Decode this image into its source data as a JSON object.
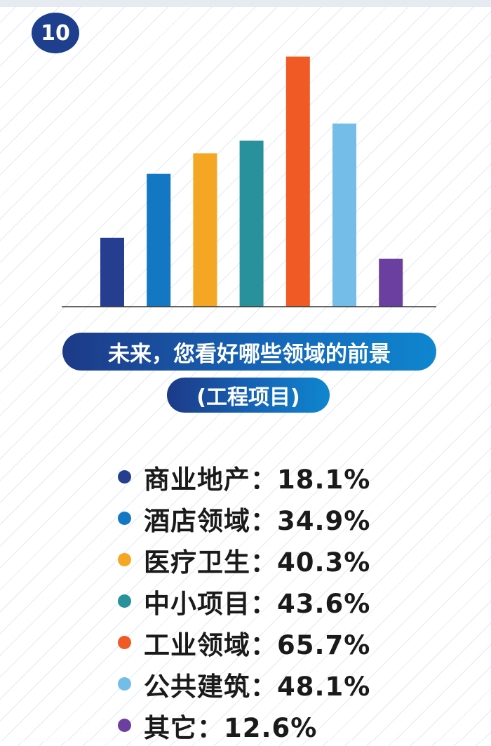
{
  "badge": {
    "number": "10"
  },
  "chart_data": {
    "type": "bar",
    "title": "未来，您看好哪些领域的前景",
    "subtitle": "(工程项目)",
    "categories": [
      "商业地产",
      "酒店领域",
      "医疗卫生",
      "中小项目",
      "工业领域",
      "公共建筑",
      "其它"
    ],
    "values": [
      18.1,
      34.9,
      40.3,
      43.6,
      65.7,
      48.1,
      12.6
    ],
    "colors": [
      "#263e8f",
      "#1377c4",
      "#f5a623",
      "#28919c",
      "#f05a25",
      "#74bde8",
      "#6b3fa0"
    ],
    "ylim": [
      0,
      66
    ],
    "grid": false,
    "legend_position": "bottom"
  },
  "legend": {
    "separator": "：",
    "items": [
      {
        "label": "商业地产",
        "value": "18.1%"
      },
      {
        "label": "酒店领域",
        "value": "34.9%"
      },
      {
        "label": "医疗卫生",
        "value": "40.3%"
      },
      {
        "label": "中小项目",
        "value": "43.6%"
      },
      {
        "label": "工业领域",
        "value": "65.7%"
      },
      {
        "label": "公共建筑",
        "value": "48.1%"
      },
      {
        "label": "其它",
        "value": "12.6%"
      }
    ]
  }
}
